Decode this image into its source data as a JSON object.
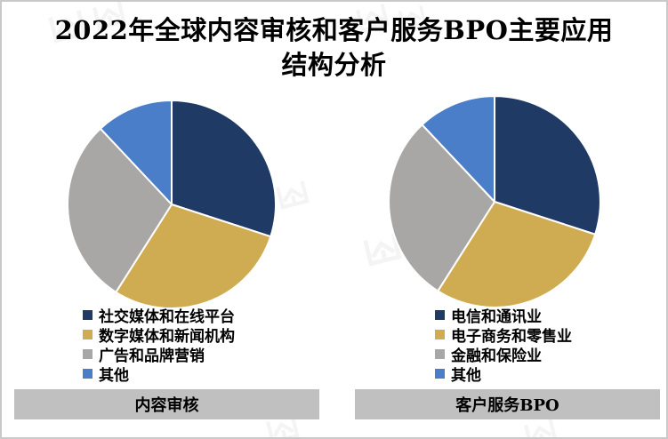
{
  "title": {
    "line1": "2022年全球内容审核和客户服务BPO主要应用",
    "line2": "结构分析"
  },
  "colors": {
    "navy": "#1F3A64",
    "gold": "#CFAC52",
    "gray": "#A9A7A5",
    "blue": "#4A7EC8",
    "footer_bar_bg": "#C1C0C0",
    "frame_border": "#C9C9C9",
    "slice_border": "#FFFFFF",
    "watermark": "#EBEBEB"
  },
  "icons": {
    "watermark": "logo-mark-icon"
  },
  "chart_data": [
    {
      "type": "pie",
      "title": "内容审核",
      "categories": [
        "社交媒体和在线平台",
        "数字媒体和新闻机构",
        "广告和品牌营销",
        "其他"
      ],
      "values": [
        30,
        29,
        29,
        12
      ],
      "colors": [
        "#1F3A64",
        "#CFAC52",
        "#A9A7A5",
        "#4A7EC8"
      ],
      "start_angle_deg": 0,
      "direction": "clockwise",
      "slice_border_color": "#FFFFFF",
      "legend_position": "bottom-left",
      "data_labels": false
    },
    {
      "type": "pie",
      "title": "客户服务BPO",
      "categories": [
        "电信和通讯业",
        "电子商务和零售业",
        "金融和保险业",
        "其他"
      ],
      "values": [
        30,
        29,
        29,
        12
      ],
      "colors": [
        "#1F3A64",
        "#CFAC52",
        "#A9A7A5",
        "#4A7EC8"
      ],
      "start_angle_deg": 0,
      "direction": "clockwise",
      "slice_border_color": "#FFFFFF",
      "legend_position": "bottom-left",
      "data_labels": false
    }
  ]
}
